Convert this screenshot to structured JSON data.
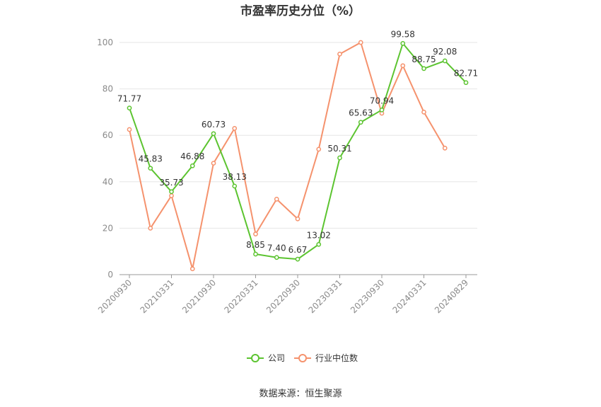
{
  "chart_data": {
    "type": "line",
    "title": "市盈率历史分位（%）",
    "x": [
      "20200930",
      "20201231",
      "20210331",
      "20210630",
      "20210930",
      "20211231",
      "20220331",
      "20220630",
      "20220930",
      "20221231",
      "20230331",
      "20230630",
      "20230930",
      "20231231",
      "20240331",
      "20240630",
      "20240829"
    ],
    "x_tick_labels": [
      "20200930",
      "20210331",
      "20210930",
      "20220331",
      "20220930",
      "20230331",
      "20230930",
      "20240331",
      "20240829"
    ],
    "ylim": [
      0,
      100
    ],
    "y_ticks": [
      0,
      20,
      40,
      60,
      80,
      100
    ],
    "grid": true,
    "legend_position": "bottom",
    "series": [
      {
        "name": "公司",
        "color": "#5cc430",
        "values": [
          71.77,
          45.83,
          35.73,
          46.88,
          60.73,
          38.13,
          8.85,
          7.4,
          6.67,
          13.02,
          50.31,
          65.63,
          70.94,
          99.58,
          88.75,
          92.08,
          82.71
        ],
        "labels": [
          "71.77",
          "45.83",
          "35.73",
          "46.88",
          "60.73",
          "38.13",
          "8.85",
          "7.40",
          "6.67",
          "13.02",
          "50.31",
          "65.63",
          "70.94",
          "99.58",
          "88.75",
          "92.08",
          "82.71"
        ]
      },
      {
        "name": "行业中位数",
        "color": "#f5926d",
        "values": [
          62.5,
          20.0,
          34.0,
          2.5,
          48.0,
          63.0,
          17.5,
          32.5,
          24.0,
          54.0,
          95.0,
          100.0,
          69.5,
          90.0,
          70.0,
          54.5,
          null
        ]
      }
    ]
  },
  "footer": {
    "source": "数据来源：恒生聚源"
  }
}
